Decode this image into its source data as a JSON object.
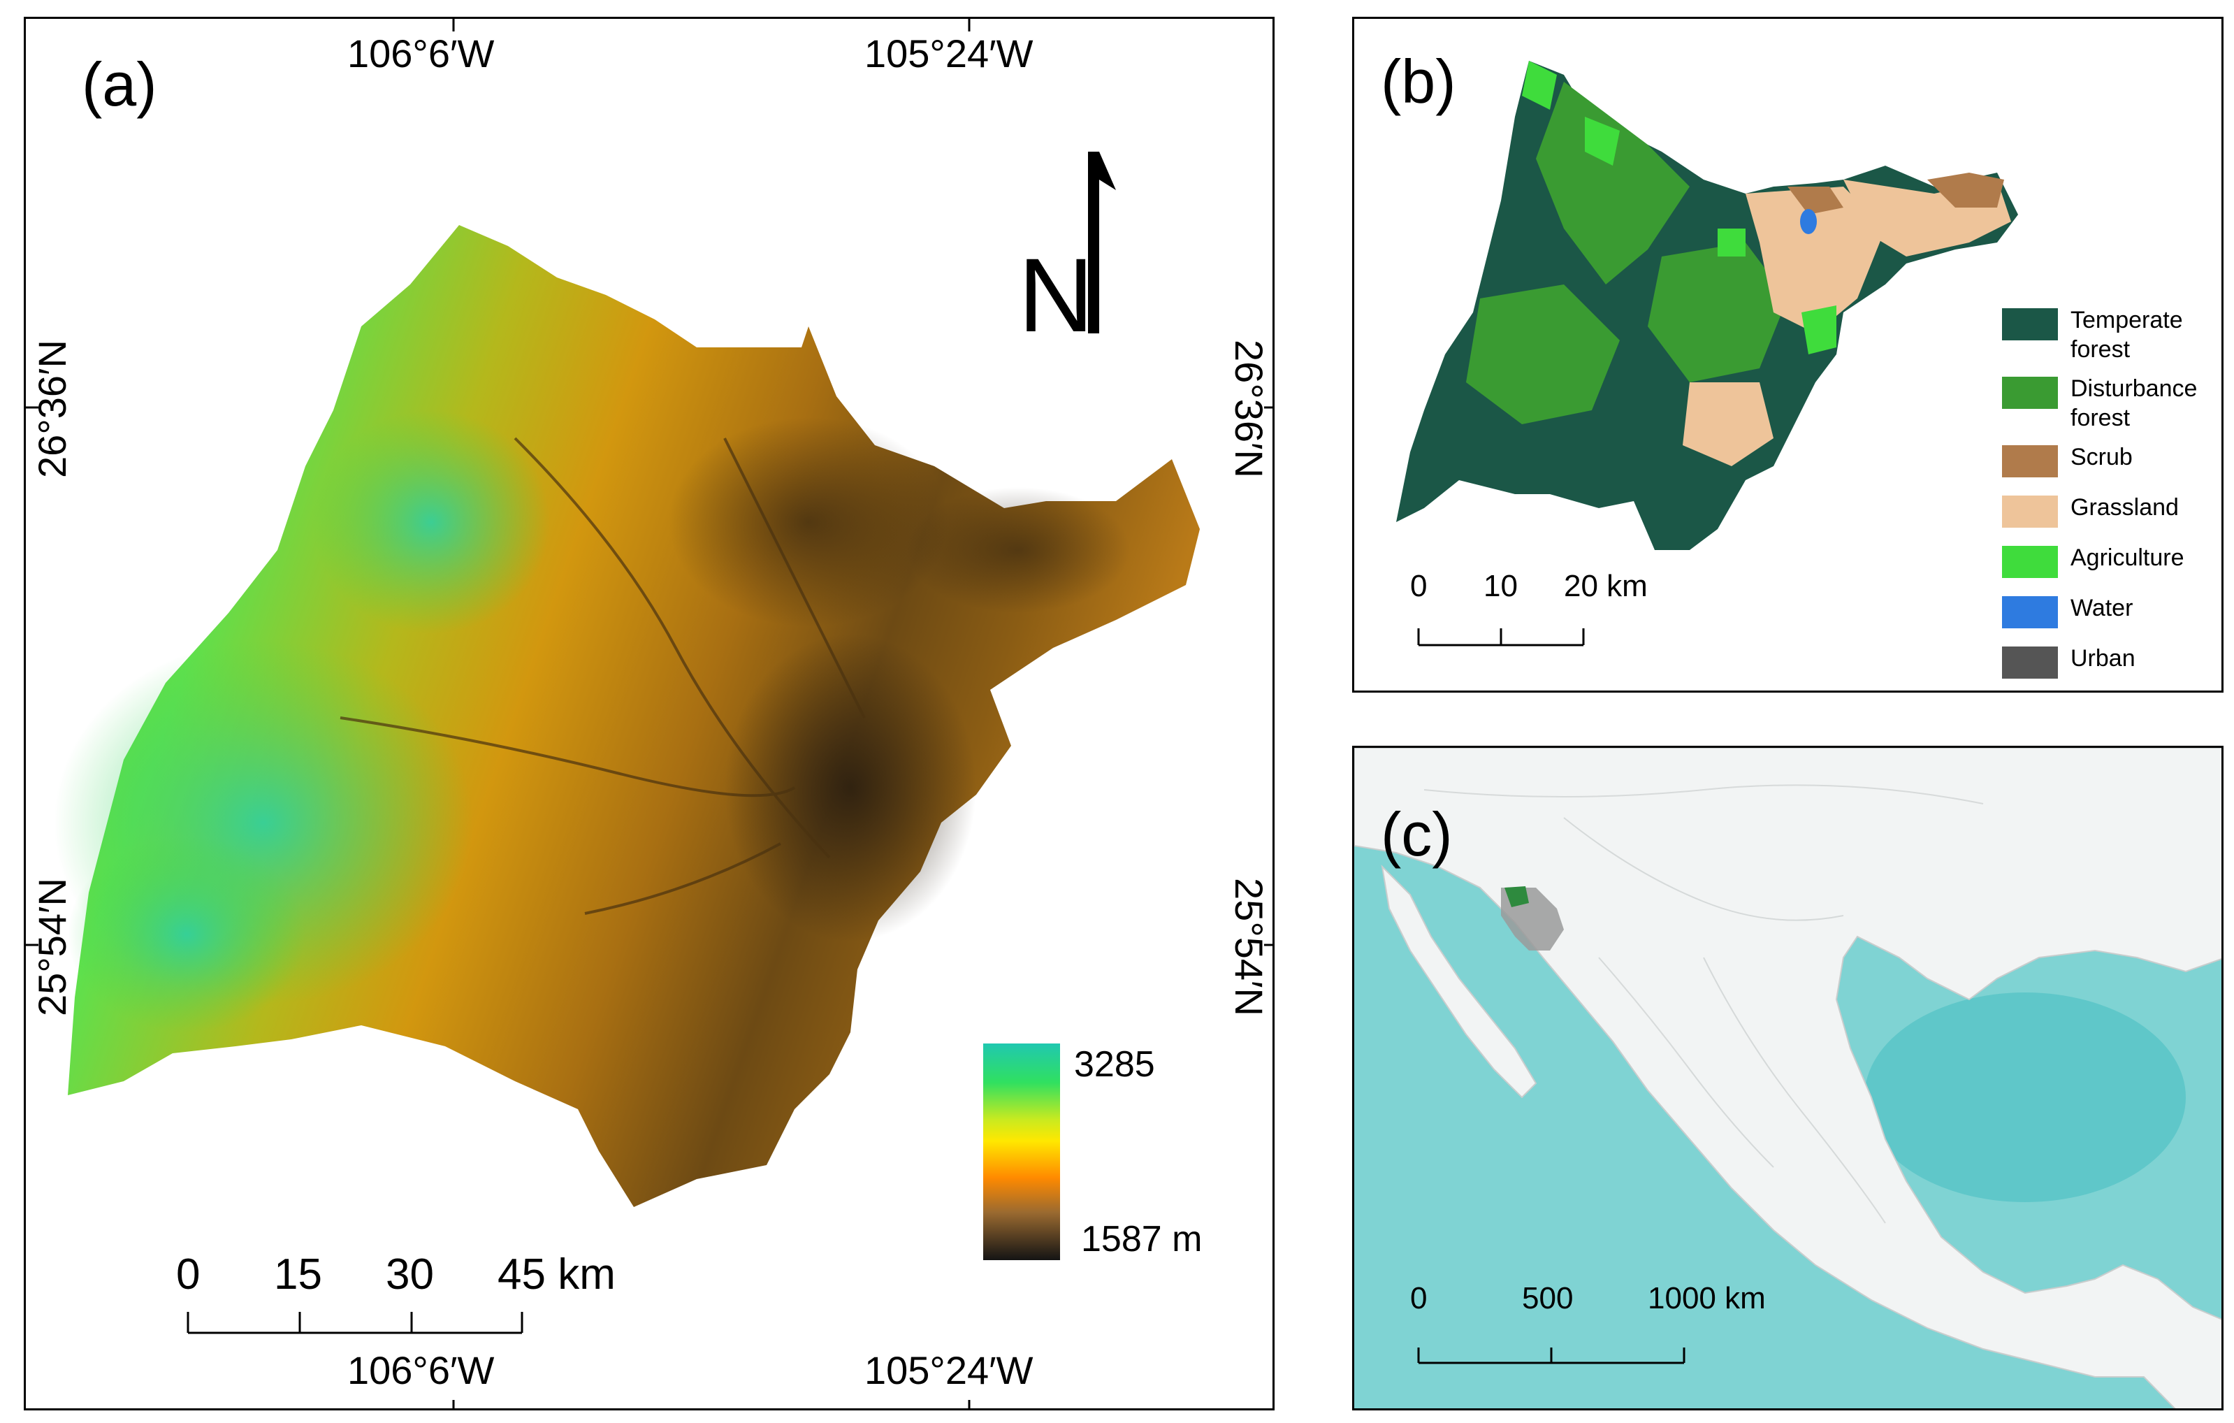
{
  "panel_a": {
    "label": "(a)",
    "lon_top": [
      "106°6′W",
      "105°24′W"
    ],
    "lon_bottom": [
      "106°6′W",
      "105°24′W"
    ],
    "lat_left": [
      "26°36′N",
      "25°54′N"
    ],
    "lat_right": [
      "26°36′N",
      "25°54′N"
    ],
    "north_label": "N",
    "elevation_legend": {
      "max_label": "3285",
      "min_label": "1587 m",
      "max_value": 3285,
      "min_value": 1587
    },
    "scale_bar": {
      "labels": [
        "0",
        "15",
        "30",
        "45 km"
      ]
    }
  },
  "panel_b": {
    "label": "(b)",
    "legend": [
      {
        "label": "Temperate forest",
        "color": "#1b5747"
      },
      {
        "label": "Disturbance forest",
        "color": "#3a9b32"
      },
      {
        "label": "Scrub",
        "color": "#b07b4b"
      },
      {
        "label": "Grassland",
        "color": "#eec49a"
      },
      {
        "label": "Agriculture",
        "color": "#3fdc3c"
      },
      {
        "label": "Water",
        "color": "#2e7be0"
      },
      {
        "label": "Urban",
        "color": "#555555"
      }
    ],
    "scale_bar": {
      "labels": [
        "0",
        "10",
        "20 km"
      ]
    }
  },
  "panel_c": {
    "label": "(c)",
    "scale_bar": {
      "labels": [
        "0",
        "500",
        "1000 km"
      ]
    },
    "colors": {
      "ocean": "#7fd3d3",
      "land": "#f2f4f4",
      "study_state": "#9a9a9a"
    }
  }
}
